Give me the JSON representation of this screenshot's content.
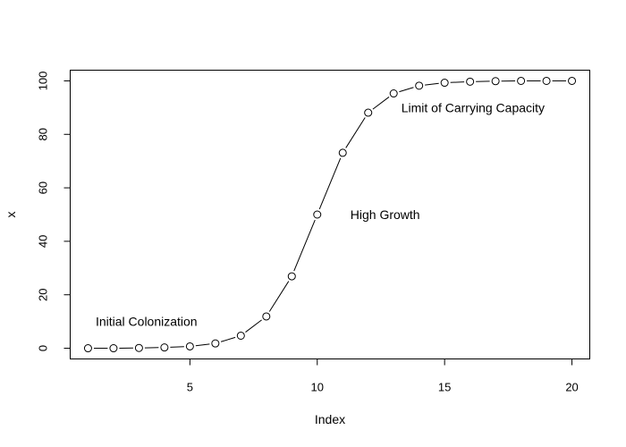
{
  "chart_data": {
    "type": "line",
    "title": "",
    "xlabel": "Index",
    "ylabel": "x",
    "xlim": [
      0.3,
      20.7
    ],
    "ylim": [
      -4,
      104
    ],
    "xticks": [
      5,
      10,
      15,
      20
    ],
    "yticks": [
      0,
      20,
      40,
      60,
      80,
      100
    ],
    "grid": false,
    "legend": "none",
    "markers": "open-circle",
    "color": "#000000",
    "x": [
      1,
      2,
      3,
      4,
      5,
      6,
      7,
      8,
      9,
      10,
      11,
      12,
      13,
      14,
      15,
      16,
      17,
      18,
      19,
      20
    ],
    "y": [
      0,
      0,
      0.1,
      0.3,
      0.7,
      1.8,
      4.7,
      11.9,
      26.9,
      50,
      73.1,
      88.1,
      95.3,
      98.2,
      99.3,
      99.7,
      99.9,
      100,
      100,
      100
    ],
    "annotations": [
      {
        "text": "Initial Colonization",
        "x": 1.3,
        "y": 10
      },
      {
        "text": "High Growth",
        "x": 11.3,
        "y": 50
      },
      {
        "text": "Limit of Carrying Capacity",
        "x": 13.3,
        "y": 90
      }
    ]
  }
}
